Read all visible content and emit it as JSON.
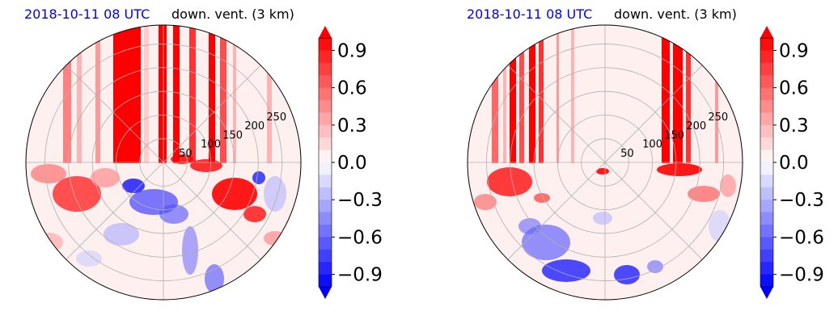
{
  "chart_data": [
    {
      "type": "heatmap",
      "projection": "polar",
      "title_left": "2018-10-11 08 UTC",
      "title_right": "down. vent. (3 km)",
      "radial_ticks": [
        "50",
        "100",
        "150",
        "200",
        "250"
      ],
      "radial_range": [
        0,
        290
      ],
      "colorbar": {
        "ticks": [
          "0.9",
          "0.6",
          "0.3",
          "0.0",
          "−0.3",
          "−0.6",
          "−0.9"
        ],
        "range": [
          -1.0,
          1.0
        ],
        "extend": "both",
        "colormap": "bwr"
      }
    },
    {
      "type": "heatmap",
      "projection": "polar",
      "title_left": "2018-10-11 08 UTC",
      "title_right": "down. vent. (3 km)",
      "radial_ticks": [
        "50",
        "100",
        "150",
        "200",
        "250"
      ],
      "radial_range": [
        0,
        290
      ],
      "colorbar": {
        "ticks": [
          "0.9",
          "0.6",
          "0.3",
          "0.0",
          "−0.3",
          "−0.6",
          "−0.9"
        ],
        "range": [
          -1.0,
          1.0
        ],
        "extend": "both",
        "colormap": "bwr"
      }
    }
  ],
  "colors": {
    "title_time": "#0000ff",
    "positive": "#ff0000",
    "negative": "#0000ff",
    "background_field": "#fff0f0",
    "grid": "#b0b0b0"
  }
}
